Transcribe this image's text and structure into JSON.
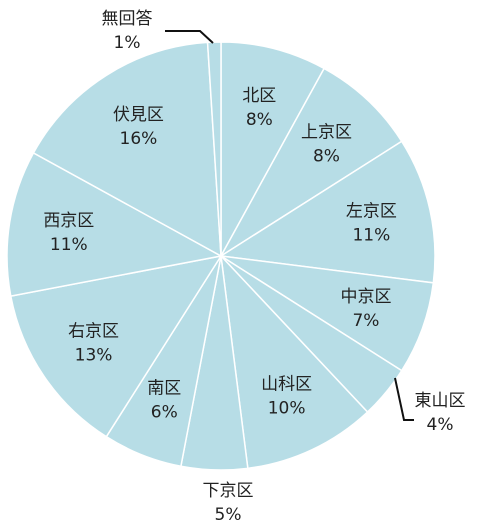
{
  "chart_data": {
    "type": "pie",
    "categories": [
      "北区",
      "上京区",
      "左京区",
      "中京区",
      "東山区",
      "山科区",
      "下京区",
      "南区",
      "右京区",
      "西京区",
      "伏見区",
      "無回答"
    ],
    "values": [
      8,
      8,
      11,
      7,
      4,
      10,
      5,
      6,
      13,
      11,
      16,
      1
    ],
    "value_labels": [
      "8%",
      "8%",
      "11%",
      "7%",
      "4%",
      "10%",
      "5%",
      "6%",
      "13%",
      "11%",
      "16%",
      "1%"
    ],
    "color": "#b7dde6"
  }
}
